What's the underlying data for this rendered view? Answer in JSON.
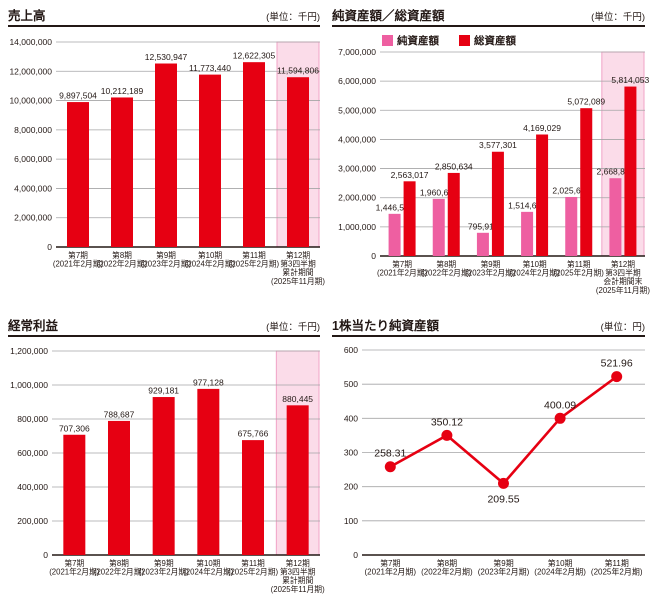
{
  "colors": {
    "red": "#e60012",
    "pink": "#ee5fa1",
    "highlight_bg": "#fbdce9",
    "highlight_border": "#f0a3c6",
    "grid": "#a5a5a6",
    "axis": "#231815",
    "text": "#231815"
  },
  "chart_data": [
    {
      "id": "sales",
      "type": "bar",
      "title": "売上高",
      "unit": "(単位：千円)",
      "categories": [
        [
          "第7期",
          "(2021年2月期)"
        ],
        [
          "第8期",
          "(2022年2月期)"
        ],
        [
          "第9期",
          "(2023年2月期)"
        ],
        [
          "第10期",
          "(2024年2月期)"
        ],
        [
          "第11期",
          "(2025年2月期)"
        ],
        [
          "第12期",
          "第3四半期",
          "累計期間",
          "(2025年11月期)"
        ]
      ],
      "values": [
        9897504,
        10212189,
        12530947,
        11773440,
        12622305,
        11594806
      ],
      "value_labels": [
        "9,897,504",
        "10,212,189",
        "12,530,947",
        "11,773,440",
        "12,622,305",
        "11,594,806"
      ],
      "ylim": [
        0,
        14000000
      ],
      "ytick_labels": [
        "0",
        "2,000,000",
        "4,000,000",
        "6,000,000",
        "8,000,000",
        "10,000,000",
        "12,000,000",
        "14,000,000"
      ],
      "highlight_last": true,
      "bar_color": "red"
    },
    {
      "id": "net-assets-total-assets",
      "type": "bar",
      "title": "純資産額／総資産額",
      "unit": "(単位：千円)",
      "legend": [
        {
          "label": "純資産額",
          "color": "pink"
        },
        {
          "label": "総資産額",
          "color": "red"
        }
      ],
      "categories": [
        [
          "第7期",
          "(2021年2月期)"
        ],
        [
          "第8期",
          "(2022年2月期)"
        ],
        [
          "第9期",
          "(2023年2月期)"
        ],
        [
          "第10期",
          "(2024年2月期)"
        ],
        [
          "第11期",
          "(2025年2月期)"
        ],
        [
          "第12期",
          "第3四半期",
          "会計期間末",
          "(2025年11月期)"
        ]
      ],
      "series": [
        {
          "name": "純資産額",
          "color": "pink",
          "values": [
            1446557,
            1960681,
            795911,
            1514602,
            2025658,
            2668818
          ],
          "value_labels": [
            "1,446,557",
            "1,960,681",
            "795,911",
            "1,514,602",
            "2,025,658",
            "2,668,818"
          ]
        },
        {
          "name": "総資産額",
          "color": "red",
          "values": [
            2563017,
            2850634,
            3577301,
            4169029,
            5072089,
            5814053
          ],
          "value_labels": [
            "2,563,017",
            "2,850,634",
            "3,577,301",
            "4,169,029",
            "5,072,089",
            "5,814,053"
          ]
        }
      ],
      "ylim": [
        0,
        7000000
      ],
      "ytick_labels": [
        "0",
        "1,000,000",
        "2,000,000",
        "3,000,000",
        "4,000,000",
        "5,000,000",
        "6,000,000",
        "7,000,000"
      ],
      "highlight_last": true
    },
    {
      "id": "ordinary-income",
      "type": "bar",
      "title": "経常利益",
      "unit": "(単位：千円)",
      "categories": [
        [
          "第7期",
          "(2021年2月期)"
        ],
        [
          "第8期",
          "(2022年2月期)"
        ],
        [
          "第9期",
          "(2023年2月期)"
        ],
        [
          "第10期",
          "(2024年2月期)"
        ],
        [
          "第11期",
          "(2025年2月期)"
        ],
        [
          "第12期",
          "第3四半期",
          "累計期間",
          "(2025年11月期)"
        ]
      ],
      "values": [
        707306,
        788687,
        929181,
        977128,
        675766,
        880445
      ],
      "value_labels": [
        "707,306",
        "788,687",
        "929,181",
        "977,128",
        "675,766",
        "880,445"
      ],
      "ylim": [
        0,
        1200000
      ],
      "ytick_labels": [
        "0",
        "200,000",
        "400,000",
        "600,000",
        "800,000",
        "1,000,000",
        "1,200,000"
      ],
      "highlight_last": true,
      "bar_color": "red"
    },
    {
      "id": "net-assets-per-share",
      "type": "line",
      "title": "1株当たり純資産額",
      "unit": "(単位：円)",
      "categories": [
        [
          "第7期",
          "(2021年2月期)"
        ],
        [
          "第8期",
          "(2022年2月期)"
        ],
        [
          "第9期",
          "(2023年2月期)"
        ],
        [
          "第10期",
          "(2024年2月期)"
        ],
        [
          "第11期",
          "(2025年2月期)"
        ]
      ],
      "values": [
        258.31,
        350.12,
        209.55,
        400.09,
        521.96
      ],
      "value_labels": [
        "258.31",
        "350.12",
        "209.55",
        "400.09",
        "521.96"
      ],
      "label_below": [
        2
      ],
      "ylim": [
        0,
        600
      ],
      "ytick_labels": [
        "0",
        "100",
        "200",
        "300",
        "400",
        "500",
        "600"
      ],
      "highlight_last": false,
      "line_color": "red"
    }
  ]
}
